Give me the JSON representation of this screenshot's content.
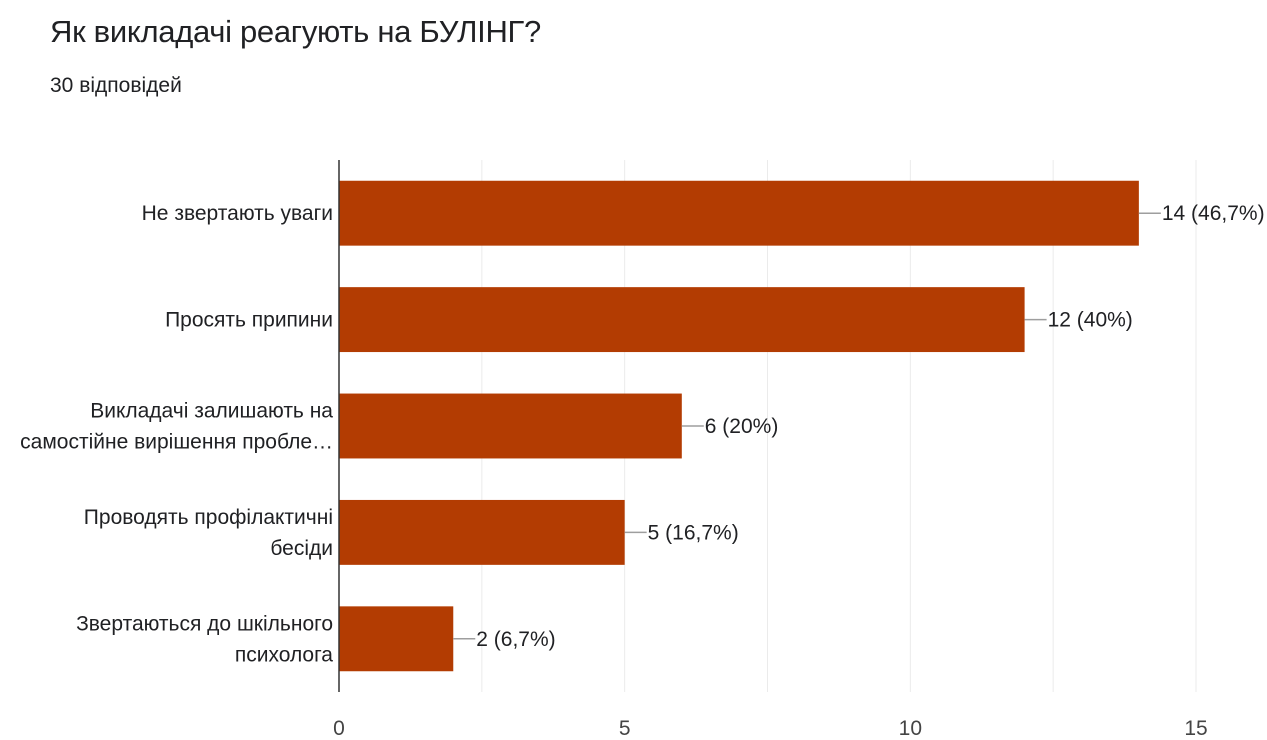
{
  "header": {
    "title": "Як викладачі реагують на БУЛІНГ?",
    "subtitle": "30 відповідей"
  },
  "colors": {
    "bar": "#b33c02",
    "grid": "#ebebeb",
    "axis": "#333333",
    "leader": "#9e9e9e"
  },
  "chart_data": {
    "type": "bar",
    "orientation": "horizontal",
    "categories": [
      [
        "Не звертають уваги"
      ],
      [
        "Просять припини"
      ],
      [
        "Викладачі залишають на",
        "самостійне вирішення пробле…"
      ],
      [
        "Проводять профілактичні",
        "бесіди"
      ],
      [
        "Звертаються до шкільного",
        "психолога"
      ]
    ],
    "values": [
      14,
      12,
      6,
      5,
      2
    ],
    "data_labels": [
      "14 (46,7%)",
      "12 (40%)",
      "6 (20%)",
      "5 (16,7%)",
      "2 (6,7%)"
    ],
    "xlim": [
      0,
      15
    ],
    "ticks": [
      0,
      5,
      10,
      15
    ],
    "tick_labels": [
      "0",
      "5",
      "10",
      "15"
    ],
    "minor_grid_step": 2.5,
    "grid": true,
    "legend": "none"
  }
}
